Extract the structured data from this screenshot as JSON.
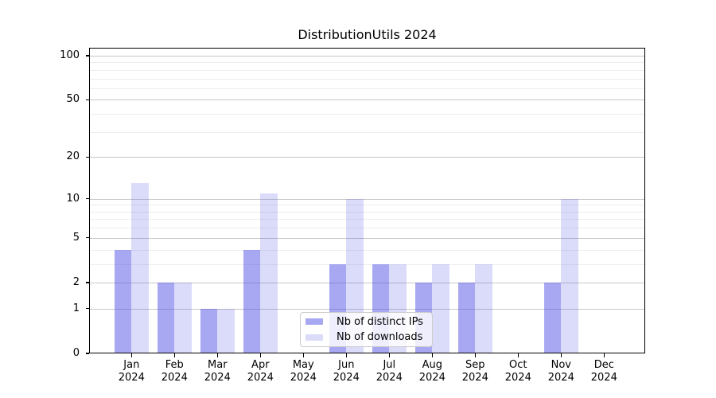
{
  "title": "DistributionUtils 2024",
  "chart_data": {
    "type": "bar",
    "title": "DistributionUtils 2024",
    "categories": [
      "Jan 2024",
      "Feb 2024",
      "Mar 2024",
      "Apr 2024",
      "May 2024",
      "Jun 2024",
      "Jul 2024",
      "Aug 2024",
      "Sep 2024",
      "Oct 2024",
      "Nov 2024",
      "Dec 2024"
    ],
    "series": [
      {
        "name": "Nb of distinct IPs",
        "color": "rgba(85,85,230,0.51)",
        "values": [
          4,
          2,
          1,
          4,
          0,
          3,
          3,
          2,
          2,
          0,
          2,
          0
        ]
      },
      {
        "name": "Nb of downloads",
        "color": "rgba(85,85,230,0.21)",
        "values": [
          13,
          2,
          1,
          11,
          0,
          10,
          3,
          3,
          3,
          0,
          10,
          0
        ]
      }
    ],
    "yscale": "log10(1+x)",
    "y_major_ticks": [
      0,
      1,
      2,
      5,
      10,
      20,
      50,
      100
    ],
    "y_minor_ticks": [
      3,
      4,
      6,
      7,
      8,
      9,
      30,
      40,
      60,
      70,
      80,
      90
    ],
    "ylim": [
      0,
      114
    ],
    "xlabel": "",
    "ylabel": "",
    "grid": "horizontal, major and minor",
    "legend_position": "lower center",
    "colors": {
      "major_grid": "#c7c7c7",
      "minor_grid": "#ededed",
      "spine": "#000000",
      "background": "#ffffff"
    }
  }
}
